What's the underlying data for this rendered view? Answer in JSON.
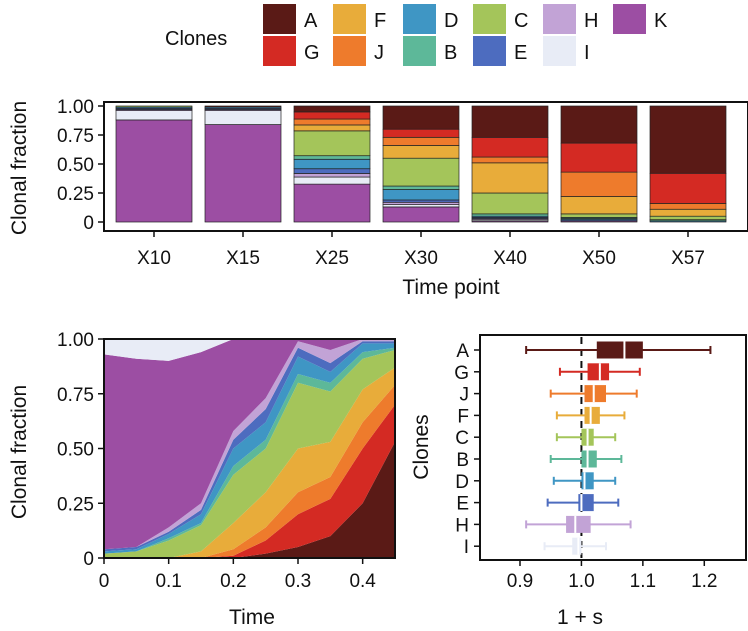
{
  "legend": {
    "title": "Clones",
    "entries": [
      {
        "key": "A",
        "color": "#5a1a16"
      },
      {
        "key": "F",
        "color": "#e8ac3a"
      },
      {
        "key": "D",
        "color": "#3f96c4"
      },
      {
        "key": "C",
        "color": "#a4c55a"
      },
      {
        "key": "H",
        "color": "#c2a3d6"
      },
      {
        "key": "K",
        "color": "#9c4ea3"
      },
      {
        "key": "G",
        "color": "#d42a23"
      },
      {
        "key": "J",
        "color": "#ee7b2c"
      },
      {
        "key": "B",
        "color": "#5db899"
      },
      {
        "key": "E",
        "color": "#4d6cbf"
      },
      {
        "key": "I",
        "color": "#e8ecf6"
      }
    ]
  },
  "chart_data": [
    {
      "type": "bar",
      "stacked": true,
      "ylabel": "Clonal fraction",
      "xlabel": "Time point",
      "ylim": [
        0,
        1
      ],
      "yticks": [
        "0",
        "0.25",
        "0.50",
        "0.75",
        "1.00"
      ],
      "categories": [
        "X10",
        "X15",
        "X25",
        "X30",
        "X40",
        "X50",
        "X57"
      ],
      "stack_order": [
        "K",
        "I",
        "H",
        "E",
        "D",
        "B",
        "C",
        "F",
        "J",
        "G",
        "A"
      ],
      "series": [
        {
          "name": "K",
          "values": [
            0.88,
            0.84,
            0.32,
            0.13,
            0.01,
            0.01,
            0.0
          ]
        },
        {
          "name": "I",
          "values": [
            0.08,
            0.12,
            0.06,
            0.02,
            0.01,
            0.0,
            0.0
          ]
        },
        {
          "name": "H",
          "values": [
            0.01,
            0.01,
            0.03,
            0.02,
            0.01,
            0.0,
            0.0
          ]
        },
        {
          "name": "E",
          "values": [
            0.01,
            0.01,
            0.04,
            0.02,
            0.01,
            0.01,
            0.0
          ]
        },
        {
          "name": "D",
          "values": [
            0.01,
            0.01,
            0.08,
            0.09,
            0.01,
            0.01,
            0.01
          ]
        },
        {
          "name": "B",
          "values": [
            0.0,
            0.0,
            0.03,
            0.03,
            0.02,
            0.01,
            0.01
          ]
        },
        {
          "name": "C",
          "values": [
            0.01,
            0.0,
            0.21,
            0.24,
            0.18,
            0.03,
            0.03
          ]
        },
        {
          "name": "F",
          "values": [
            0.0,
            0.0,
            0.05,
            0.11,
            0.26,
            0.15,
            0.06
          ]
        },
        {
          "name": "J",
          "values": [
            0.0,
            0.0,
            0.05,
            0.07,
            0.05,
            0.21,
            0.05
          ]
        },
        {
          "name": "G",
          "values": [
            0.0,
            0.0,
            0.06,
            0.07,
            0.17,
            0.25,
            0.26
          ]
        },
        {
          "name": "A",
          "values": [
            0.0,
            0.01,
            0.05,
            0.2,
            0.27,
            0.32,
            0.58
          ]
        }
      ]
    },
    {
      "type": "area",
      "stacked": true,
      "ylabel": "Clonal fraction",
      "xlabel": "Time",
      "ylim": [
        0,
        1
      ],
      "xlim": [
        0,
        0.45
      ],
      "xticks": [
        "0",
        "0.1",
        "0.2",
        "0.3",
        "0.4"
      ],
      "yticks": [
        "0",
        "0.25",
        "0.50",
        "0.75",
        "1.00"
      ],
      "x": [
        0,
        0.05,
        0.1,
        0.15,
        0.2,
        0.25,
        0.3,
        0.35,
        0.4,
        0.45
      ],
      "stack_order": [
        "A",
        "G",
        "J",
        "F",
        "C",
        "B",
        "D",
        "E",
        "H",
        "K",
        "I"
      ],
      "series": [
        {
          "name": "A",
          "values": [
            0,
            0,
            0,
            0,
            0,
            0.02,
            0.05,
            0.1,
            0.25,
            0.53
          ]
        },
        {
          "name": "G",
          "values": [
            0,
            0,
            0,
            0,
            0.01,
            0.06,
            0.15,
            0.17,
            0.25,
            0.17
          ]
        },
        {
          "name": "J",
          "values": [
            0,
            0,
            0,
            0,
            0.03,
            0.06,
            0.1,
            0.1,
            0.12,
            0.09
          ]
        },
        {
          "name": "F",
          "values": [
            0,
            0,
            0,
            0.03,
            0.12,
            0.16,
            0.2,
            0.16,
            0.15,
            0.08
          ]
        },
        {
          "name": "C",
          "values": [
            0.02,
            0.03,
            0.08,
            0.12,
            0.22,
            0.2,
            0.3,
            0.23,
            0.14,
            0.08
          ]
        },
        {
          "name": "B",
          "values": [
            0,
            0,
            0.01,
            0.01,
            0.04,
            0.04,
            0.04,
            0.04,
            0.03,
            0.01
          ]
        },
        {
          "name": "D",
          "values": [
            0.01,
            0.01,
            0.02,
            0.04,
            0.08,
            0.08,
            0.08,
            0.05,
            0.04,
            0.02
          ]
        },
        {
          "name": "E",
          "values": [
            0.01,
            0.01,
            0.01,
            0.02,
            0.04,
            0.06,
            0.04,
            0.04,
            0.01,
            0.01
          ]
        },
        {
          "name": "H",
          "values": [
            0,
            0,
            0.02,
            0.03,
            0.04,
            0.05,
            0.03,
            0.06,
            0.01,
            0.01
          ]
        },
        {
          "name": "K",
          "values": [
            0.89,
            0.86,
            0.76,
            0.69,
            0.42,
            0.27,
            0.01,
            0.05,
            0,
            0
          ]
        },
        {
          "name": "I",
          "values": [
            0.07,
            0.09,
            0.1,
            0.06,
            0,
            0,
            0,
            0,
            0,
            0
          ]
        }
      ]
    },
    {
      "type": "box",
      "orientation": "horizontal",
      "ylabel": "Clones",
      "xlabel": "1 + s",
      "xlim": [
        0.83,
        1.25
      ],
      "xticks": [
        "0.9",
        "1.0",
        "1.1",
        "1.2"
      ],
      "reference_line": 1.0,
      "categories": [
        "A",
        "G",
        "J",
        "F",
        "C",
        "B",
        "D",
        "E",
        "H",
        "I"
      ],
      "boxes": [
        {
          "name": "A",
          "min": 0.91,
          "q1": 1.025,
          "median": 1.07,
          "q3": 1.1,
          "max": 1.21
        },
        {
          "name": "G",
          "min": 0.965,
          "q1": 1.01,
          "median": 1.03,
          "q3": 1.045,
          "max": 1.095
        },
        {
          "name": "J",
          "min": 0.95,
          "q1": 1.005,
          "median": 1.02,
          "q3": 1.04,
          "max": 1.09
        },
        {
          "name": "F",
          "min": 0.96,
          "q1": 1.005,
          "median": 1.015,
          "q3": 1.03,
          "max": 1.07
        },
        {
          "name": "C",
          "min": 0.96,
          "q1": 1.0,
          "median": 1.01,
          "q3": 1.02,
          "max": 1.055
        },
        {
          "name": "B",
          "min": 0.95,
          "q1": 1.0,
          "median": 1.01,
          "q3": 1.025,
          "max": 1.065
        },
        {
          "name": "D",
          "min": 0.955,
          "q1": 1.0,
          "median": 1.005,
          "q3": 1.02,
          "max": 1.055
        },
        {
          "name": "E",
          "min": 0.945,
          "q1": 0.995,
          "median": 1.0,
          "q3": 1.02,
          "max": 1.06
        },
        {
          "name": "H",
          "min": 0.91,
          "q1": 0.975,
          "median": 0.99,
          "q3": 1.015,
          "max": 1.08
        },
        {
          "name": "I",
          "min": 0.94,
          "q1": 0.985,
          "median": 0.995,
          "q3": 1.0,
          "max": 1.04
        }
      ]
    }
  ]
}
